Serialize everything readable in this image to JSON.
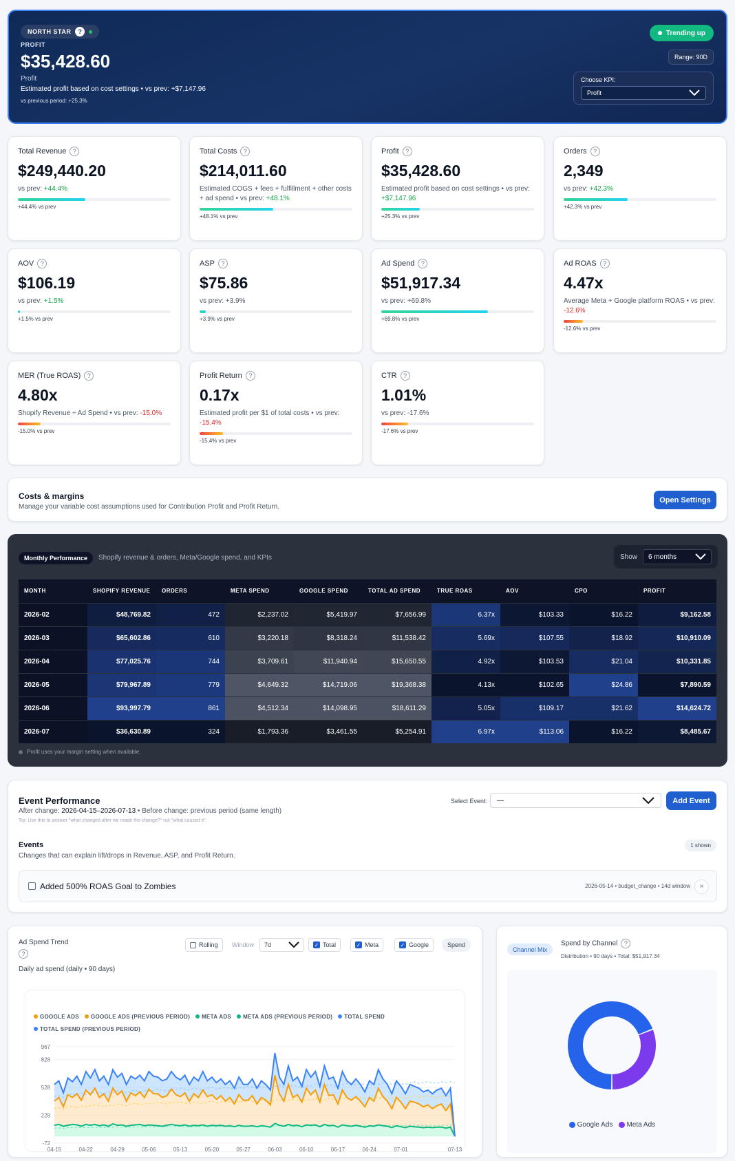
{
  "hero": {
    "badge": "NORTH STAR",
    "help": "?",
    "kpi_label": "PROFIT",
    "value": "$35,428.60",
    "name": "Profit",
    "description": "Estimated profit based on cost settings • vs prev: +$7,147.96",
    "vs_prev": "vs previous period: +25.3%",
    "trend": "Trending up",
    "range": "Range: 90D",
    "choose_kpi_label": "Choose KPI:",
    "choose_kpi_value": "Profit"
  },
  "kpis": [
    {
      "title": "Total Revenue",
      "value": "$249,440.20",
      "sub_pre": "vs prev: ",
      "sub_delta": "+44.4%",
      "delta_class": "up",
      "bar_label": "+44.4% vs prev",
      "fill": 0.44,
      "fill_kind": "fg"
    },
    {
      "title": "Total Costs",
      "value": "$214,011.60",
      "sub_pre": "Estimated COGS + fees + fulfillment + other costs + ad spend • vs prev: ",
      "sub_delta": "+48.1%",
      "delta_class": "up",
      "bar_label": "+48.1% vs prev",
      "fill": 0.48,
      "fill_kind": "fg"
    },
    {
      "title": "Profit",
      "value": "$35,428.60",
      "sub_pre": "Estimated profit based on cost settings • vs prev: ",
      "sub_delta": "+$7,147.96",
      "delta_class": "up",
      "bar_label": "+25.3% vs prev",
      "fill": 0.25,
      "fill_kind": "fg"
    },
    {
      "title": "Orders",
      "value": "2,349",
      "sub_pre": "vs prev: ",
      "sub_delta": "+42.3%",
      "delta_class": "up",
      "bar_label": "+42.3% vs prev",
      "fill": 0.42,
      "fill_kind": "fg"
    },
    {
      "title": "AOV",
      "value": "$106.19",
      "sub_pre": "vs prev: ",
      "sub_delta": "+1.5%",
      "delta_class": "up",
      "bar_label": "+1.5% vs prev",
      "fill": 0.015,
      "fill_kind": "fg"
    },
    {
      "title": "ASP",
      "value": "$75.86",
      "sub_pre": "vs prev: +3.9%",
      "sub_delta": "",
      "delta_class": "up",
      "bar_label": "+3.9% vs prev",
      "fill": 0.039,
      "fill_kind": "fg"
    },
    {
      "title": "Ad Spend",
      "value": "$51,917.34",
      "sub_pre": "vs prev: +69.8%",
      "sub_delta": "",
      "delta_class": "up",
      "bar_label": "+69.8% vs prev",
      "fill": 0.698,
      "fill_kind": "fg"
    },
    {
      "title": "Ad ROAS",
      "value": "4.47x",
      "sub_pre": "Average Meta + Google platform ROAS • vs prev: ",
      "sub_delta": "-12.6%",
      "delta_class": "dn",
      "bar_label": "-12.6% vs prev",
      "fill": 0.126,
      "fill_kind": "fr"
    },
    {
      "title": "MER (True ROAS)",
      "value": "4.80x",
      "sub_pre": "Shopify Revenue ÷ Ad Spend • vs prev: ",
      "sub_delta": "-15.0%",
      "delta_class": "dn",
      "bar_label": "-15.0% vs prev",
      "fill": 0.15,
      "fill_kind": "fr"
    },
    {
      "title": "Profit Return",
      "value": "0.17x",
      "sub_pre": "Estimated profit per $1 of total costs • vs prev: ",
      "sub_delta": "-15.4%",
      "delta_class": "dn",
      "bar_label": "-15.4% vs prev",
      "fill": 0.154,
      "fill_kind": "fr"
    },
    {
      "title": "CTR",
      "value": "1.01%",
      "sub_pre": "vs prev: -17.6%",
      "sub_delta": "",
      "delta_class": "dn",
      "bar_label": "-17.6% vs prev",
      "fill": 0.176,
      "fill_kind": "fr"
    }
  ],
  "costs": {
    "title": "Costs & margins",
    "subtitle": "Manage your variable cost assumptions used for Contribution Profit and Profit Return.",
    "button": "Open Settings"
  },
  "monthly": {
    "badge": "Monthly Performance",
    "subtitle": "Shopify revenue & orders, Meta/Google spend, and KPIs",
    "show_label": "Show",
    "show_value": "6 months",
    "columns": [
      "MONTH",
      "SHOPIFY REVENUE",
      "ORDERS",
      "META SPEND",
      "GOOGLE SPEND",
      "TOTAL AD SPEND",
      "TRUE ROAS",
      "AOV",
      "CPO",
      "PROFIT"
    ],
    "rows": [
      [
        "2026-02",
        "$48,769.82",
        "472",
        "$2,237.02",
        "$5,419.97",
        "$7,656.99",
        "6.37x",
        "$103.33",
        "$16.22",
        "$9,162.58"
      ],
      [
        "2026-03",
        "$65,602.86",
        "610",
        "$3,220.18",
        "$8,318.24",
        "$11,538.42",
        "5.69x",
        "$107.55",
        "$18.92",
        "$10,910.09"
      ],
      [
        "2026-04",
        "$77,025.76",
        "744",
        "$3,709.61",
        "$11,940.94",
        "$15,650.55",
        "4.92x",
        "$103.53",
        "$21.04",
        "$10,331.85"
      ],
      [
        "2026-05",
        "$79,967.89",
        "779",
        "$4,649.32",
        "$14,719.06",
        "$19,368.38",
        "4.13x",
        "$102.65",
        "$24.86",
        "$7,890.59"
      ],
      [
        "2026-06",
        "$93,997.79",
        "861",
        "$4,512.34",
        "$14,098.95",
        "$18,611.29",
        "5.05x",
        "$109.17",
        "$21.62",
        "$14,624.72"
      ],
      [
        "2026-07",
        "$36,630.89",
        "324",
        "$1,793.36",
        "$3,461.55",
        "$5,254.91",
        "6.97x",
        "$113.06",
        "$16.22",
        "$8,485.67"
      ]
    ],
    "footnote": "Profit uses your margin setting when available."
  },
  "events": {
    "title": "Event Performance",
    "after_label": "After change: ",
    "after_value": "2026-04-15–2026-07-13",
    "before_text": " • Before change: previous period (same length)",
    "tip": "Tip: Use this to answer \"what changed after we made the change?\" not \"what caused it\".",
    "select_label": "Select Event:",
    "select_value": "—",
    "add_button": "Add Event",
    "list_title": "Events",
    "list_subtitle": "Changes that can explain lift/drops in Revenue, ASP, and Profit Return.",
    "shown": "1 shown",
    "item_title": "Added 500% ROAS Goal to Zombies",
    "item_meta": "2026-05-14 • budget_change • 14d window",
    "item_close": "×"
  },
  "trend": {
    "title": "Ad Spend Trend",
    "subtitle": "Daily ad spend (daily • 90 days)",
    "rolling": "Rolling",
    "window_label": "Window",
    "window_value": "7d",
    "total": "Total",
    "meta": "Meta",
    "google": "Google",
    "spend": "Spend"
  },
  "channel": {
    "badge": "Channel Mix",
    "title": "Spend by Channel",
    "subtitle": "Distribution • 90 days • Total: $51,917.34",
    "legend_google": "Google Ads",
    "legend_meta": "Meta Ads"
  },
  "colors": {
    "google": "#f59e0b",
    "meta": "#10b981",
    "total": "#3b82f6",
    "meta_slice": "#7c3aed",
    "google_slice": "#2563eb"
  },
  "chart_data": [
    {
      "type": "line",
      "series": [
        {
          "name": "GOOGLE ADS",
          "color": "#f59e0b"
        },
        {
          "name": "GOOGLE ADS (PREVIOUS PERIOD)",
          "color": "#f59e0b"
        },
        {
          "name": "META ADS",
          "color": "#10b981"
        },
        {
          "name": "META ADS (PREVIOUS PERIOD)",
          "color": "#10b981"
        },
        {
          "name": "TOTAL SPEND",
          "color": "#3b82f6"
        },
        {
          "name": "TOTAL SPEND (PREVIOUS PERIOD)",
          "color": "#3b82f6"
        }
      ],
      "x_ticks": [
        "04-15",
        "04-22",
        "04-29",
        "05-06",
        "05-13",
        "05-20",
        "05-27",
        "06-03",
        "06-10",
        "06-17",
        "06-24",
        "07-01",
        "07-13"
      ],
      "y_ticks": [
        "967",
        "828",
        "528",
        "228",
        "-72"
      ],
      "ylim": [
        -72,
        967
      ],
      "total": [
        560,
        600,
        470,
        630,
        590,
        650,
        560,
        700,
        630,
        720,
        600,
        650,
        560,
        720,
        640,
        680,
        560,
        650,
        620,
        660,
        600,
        700,
        650,
        640,
        600,
        620,
        700,
        640,
        610,
        660,
        560,
        640,
        600,
        700,
        600,
        640,
        580,
        620,
        560,
        600,
        520,
        640,
        560,
        560,
        620,
        520,
        600,
        560,
        500,
        900,
        640,
        560,
        760,
        600,
        640,
        540,
        720,
        640,
        700,
        540,
        760,
        620,
        640,
        520,
        700,
        600,
        560,
        620,
        560,
        480,
        600,
        560,
        720,
        620,
        560,
        460,
        600,
        540,
        460,
        560,
        540,
        520,
        480,
        500,
        460,
        500,
        520,
        440,
        520,
        0
      ],
      "google": [
        380,
        420,
        320,
        450,
        420,
        460,
        390,
        500,
        450,
        520,
        420,
        460,
        380,
        520,
        450,
        490,
        380,
        470,
        440,
        480,
        420,
        510,
        460,
        460,
        420,
        440,
        510,
        450,
        430,
        470,
        380,
        460,
        420,
        500,
        430,
        450,
        400,
        440,
        380,
        420,
        350,
        450,
        390,
        390,
        440,
        350,
        420,
        390,
        340,
        660,
        460,
        380,
        560,
        420,
        450,
        370,
        520,
        450,
        500,
        370,
        560,
        440,
        450,
        350,
        500,
        420,
        390,
        430,
        380,
        320,
        420,
        380,
        520,
        430,
        380,
        300,
        420,
        370,
        300,
        380,
        370,
        350,
        320,
        340,
        300,
        330,
        350,
        280,
        350,
        0
      ],
      "meta": [
        120,
        130,
        110,
        120,
        130,
        125,
        110,
        130,
        120,
        130,
        115,
        125,
        110,
        135,
        120,
        125,
        110,
        120,
        125,
        130,
        115,
        125,
        120,
        115,
        110,
        120,
        130,
        120,
        115,
        125,
        110,
        120,
        115,
        125,
        110,
        120,
        115,
        120,
        110,
        115,
        105,
        120,
        110,
        110,
        115,
        105,
        115,
        110,
        100,
        140,
        120,
        110,
        130,
        115,
        120,
        105,
        125,
        120,
        125,
        105,
        130,
        115,
        120,
        100,
        125,
        115,
        110,
        120,
        110,
        100,
        115,
        110,
        125,
        115,
        110,
        95,
        115,
        105,
        95,
        110,
        105,
        100,
        95,
        100,
        95,
        100,
        100,
        90,
        100,
        0
      ],
      "total_prev": [
        430,
        440,
        420,
        450,
        460,
        440,
        470,
        450,
        460,
        480,
        470,
        460,
        480,
        470,
        490,
        480,
        470,
        490,
        500,
        480,
        490,
        500,
        490,
        510,
        500,
        490,
        510,
        500,
        520,
        510,
        500,
        520,
        510,
        500,
        520,
        530,
        510,
        520,
        530,
        520,
        510,
        530,
        520,
        540,
        530,
        520,
        540,
        530,
        520,
        540,
        550,
        530,
        540,
        550,
        540,
        530,
        550,
        540,
        560,
        550,
        540,
        560,
        550,
        540,
        560,
        570,
        550,
        560,
        570,
        560,
        550,
        570,
        560,
        580,
        570,
        560,
        580,
        570,
        560,
        580,
        590,
        570,
        580,
        590,
        580,
        570,
        590,
        580,
        590,
        580
      ],
      "google_prev": [
        300,
        310,
        290,
        320,
        330,
        310,
        330,
        320,
        330,
        340,
        330,
        320,
        340,
        330,
        350,
        340,
        330,
        350,
        360,
        340,
        350,
        360,
        350,
        370,
        360,
        350,
        370,
        360,
        370,
        360,
        350,
        370,
        360,
        350,
        370,
        380,
        360,
        370,
        380,
        370,
        360,
        380,
        370,
        390,
        380,
        370,
        390,
        380,
        370,
        390,
        400,
        380,
        390,
        400,
        390,
        380,
        400,
        390,
        410,
        400,
        390,
        410,
        400,
        390,
        410,
        420,
        400,
        410,
        420,
        410,
        400,
        420,
        410,
        430,
        420,
        410,
        430,
        420,
        410,
        430,
        440,
        420,
        430,
        440,
        430,
        420,
        440,
        430,
        440,
        430
      ],
      "meta_prev": [
        90,
        92,
        88,
        94,
        96,
        92,
        98,
        95,
        96,
        100,
        98,
        96,
        100,
        98,
        102,
        100,
        98,
        102,
        104,
        100,
        102,
        104,
        102,
        106,
        104,
        102,
        106,
        104,
        108,
        106,
        104,
        108,
        106,
        104,
        108,
        110,
        106,
        108,
        110,
        108,
        106,
        110,
        108,
        112,
        110,
        108,
        112,
        110,
        108,
        112,
        114,
        110,
        112,
        114,
        112,
        110,
        114,
        112,
        116,
        114,
        112,
        116,
        114,
        112,
        116,
        118,
        114,
        116,
        118,
        116,
        114,
        118,
        116,
        120,
        118,
        116,
        120,
        118,
        116,
        120,
        122,
        118,
        120,
        122,
        120,
        118,
        122,
        120,
        122,
        120
      ]
    },
    {
      "type": "pie",
      "categories": [
        "Google Ads",
        "Meta Ads"
      ],
      "values": [
        69,
        31
      ],
      "donut": true
    }
  ]
}
